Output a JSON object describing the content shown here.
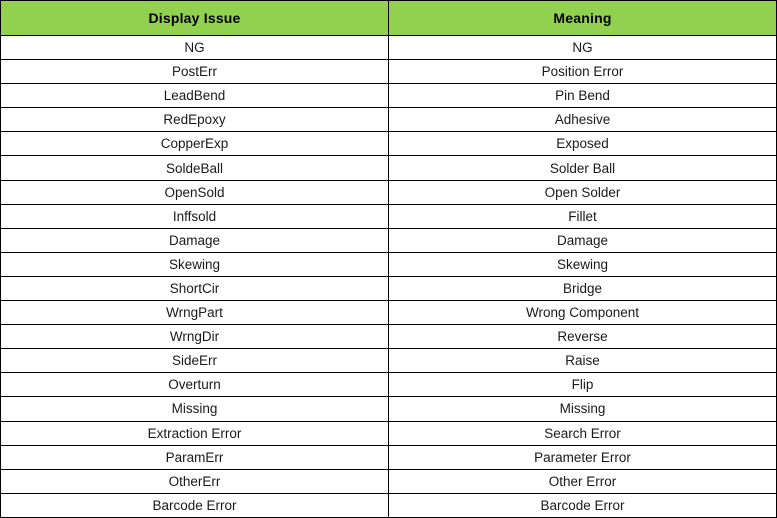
{
  "table": {
    "header_bg_color": "#92d050",
    "border_color": "#000000",
    "headers": [
      "Display Issue",
      "Meaning"
    ],
    "rows": [
      {
        "display": "NG",
        "meaning": "NG"
      },
      {
        "display": "PostErr",
        "meaning": "Position Error"
      },
      {
        "display": "LeadBend",
        "meaning": "Pin Bend"
      },
      {
        "display": "RedEpoxy",
        "meaning": "Adhesive"
      },
      {
        "display": "CopperExp",
        "meaning": "Exposed"
      },
      {
        "display": "SoldeBall",
        "meaning": "Solder Ball"
      },
      {
        "display": "OpenSold",
        "meaning": "Open Solder"
      },
      {
        "display": "Inffsold",
        "meaning": "Fillet"
      },
      {
        "display": "Damage",
        "meaning": "Damage"
      },
      {
        "display": "Skewing",
        "meaning": "Skewing"
      },
      {
        "display": "ShortCir",
        "meaning": "Bridge"
      },
      {
        "display": "WrngPart",
        "meaning": "Wrong Component"
      },
      {
        "display": "WrngDir",
        "meaning": "Reverse"
      },
      {
        "display": "SideErr",
        "meaning": "Raise"
      },
      {
        "display": "Overturn",
        "meaning": "Flip"
      },
      {
        "display": "Missing",
        "meaning": "Missing"
      },
      {
        "display": "Extraction Error",
        "meaning": "Search Error"
      },
      {
        "display": "ParamErr",
        "meaning": "Parameter Error"
      },
      {
        "display": "OtherErr",
        "meaning": "Other Error"
      },
      {
        "display": "Barcode Error",
        "meaning": "Barcode Error"
      }
    ]
  }
}
